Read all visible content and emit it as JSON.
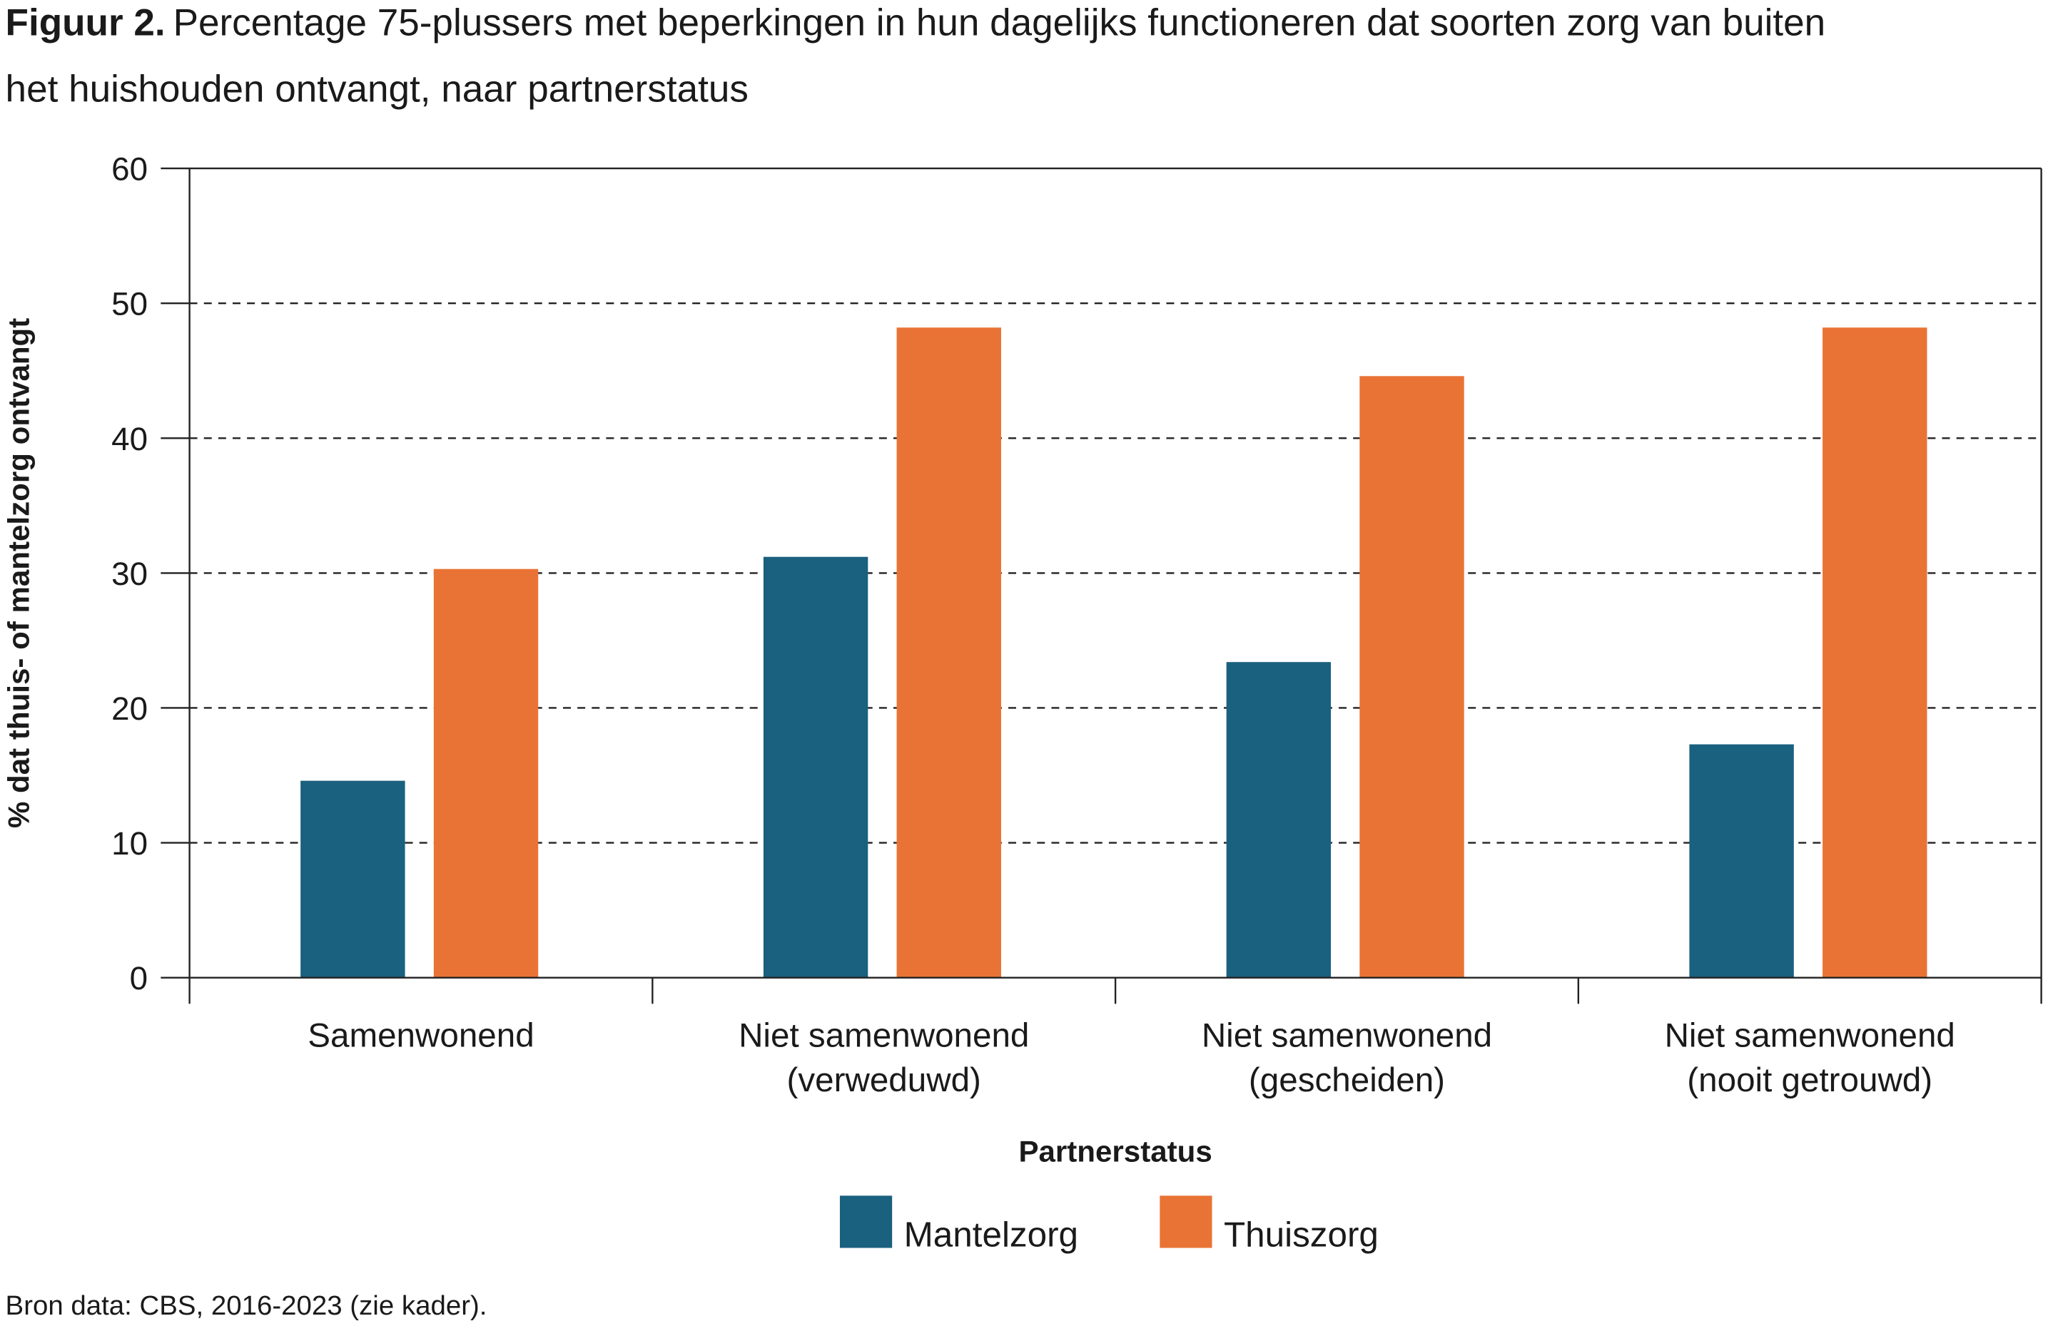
{
  "title": {
    "label": "Figuur 2.",
    "text_line1": "Percentage 75-plussers met beperkingen in hun dagelijks functioneren dat soorten zorg van buiten",
    "text_line2": "het huishouden ontvangt, naar partnerstatus"
  },
  "source": "Bron data: CBS, 2016-2023 (zie kader).",
  "chart_data": {
    "type": "bar",
    "title": "Figuur 2. Percentage 75-plussers met beperkingen in hun dagelijks functioneren dat soorten zorg van buiten het huishouden ontvangt, naar partnerstatus",
    "xlabel": "Partnerstatus",
    "ylabel": "% dat thuis- of mantelzorg ontvangt",
    "ylim": [
      0,
      60
    ],
    "yticks": [
      0,
      10,
      20,
      30,
      40,
      50,
      60
    ],
    "grid": "horizontal dashed",
    "legend": "bottom",
    "categories": [
      [
        "Samenwonend"
      ],
      [
        "Niet samenwonend",
        "(verweduwd)"
      ],
      [
        "Niet samenwonend",
        "(gescheiden)"
      ],
      [
        "Niet samenwonend",
        "(nooit getrouwd)"
      ]
    ],
    "series": [
      {
        "name": "Mantelzorg",
        "color": "#1a607f",
        "values": [
          14.6,
          31.2,
          23.4,
          17.3
        ]
      },
      {
        "name": "Thuiszorg",
        "color": "#e97335",
        "values": [
          30.3,
          48.2,
          44.6,
          48.2
        ]
      }
    ]
  }
}
